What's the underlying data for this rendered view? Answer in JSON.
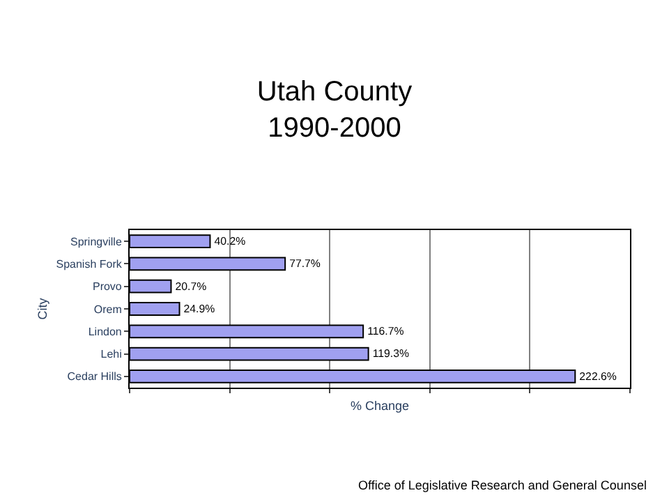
{
  "chart_data": {
    "type": "bar",
    "orientation": "horizontal",
    "title": "Utah County\n1990-2000",
    "xlabel": "% Change",
    "ylabel": "City",
    "categories": [
      "Springville",
      "Spanish Fork",
      "Provo",
      "Orem",
      "Lindon",
      "Lehi",
      "Cedar Hills"
    ],
    "values": [
      40.2,
      77.7,
      20.7,
      24.9,
      116.7,
      119.3,
      222.6
    ],
    "value_labels": [
      "40.2%",
      "77.7%",
      "20.7%",
      "24.9%",
      "116.7%",
      "119.3%",
      "222.6%"
    ],
    "color": "#a0a0f0",
    "xlim": [
      0,
      250
    ],
    "xticks": [
      {
        "value": 0,
        "label": null
      },
      {
        "value": 50,
        "label": null
      },
      {
        "value": 100,
        "label": null
      },
      {
        "value": 150,
        "label": null
      },
      {
        "value": 200,
        "label": null
      },
      {
        "value": 250,
        "label": null
      }
    ],
    "grid": "x",
    "legend": false,
    "tick_labels": "y",
    "annotations": [
      "Office of Legislative Research and General Counsel"
    ]
  }
}
